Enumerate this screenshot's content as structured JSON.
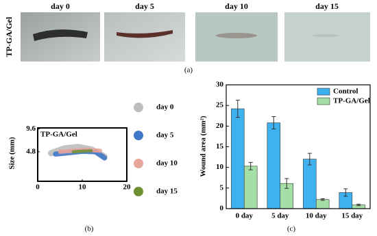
{
  "photos": {
    "row_label": "TP-GA/Gel",
    "labels": [
      "day 0",
      "day 5",
      "day 10",
      "day 15"
    ],
    "panel": "(a)"
  },
  "chart_data": [
    {
      "type": "trace",
      "panel": "(b)",
      "title": "TP-GA/Gel",
      "ylabel": "Size (mm)",
      "xlim": [
        0,
        20
      ],
      "xticks": [
        0,
        10,
        20
      ],
      "ylim": [
        -1.4,
        9.8
      ],
      "yticks": [
        4.8,
        9.6
      ],
      "series": [
        {
          "name": "day 0",
          "color": "#bdbdbd",
          "x": [
            3,
            6,
            9,
            12,
            15
          ],
          "values": [
            4.5,
            5.5,
            5.8,
            5.3,
            3.8
          ]
        },
        {
          "name": "day 5",
          "color": "#3f78c8",
          "x": [
            4,
            7,
            10,
            13,
            15
          ],
          "values": [
            4.3,
            4.6,
            4.9,
            4.8,
            3.5
          ]
        },
        {
          "name": "day 10",
          "color": "#e8a59a",
          "x": [
            5,
            8,
            11,
            14
          ],
          "values": [
            4.8,
            5.0,
            5.2,
            5.0
          ]
        },
        {
          "name": "day 15",
          "color": "#6f8f35",
          "x": [
            8,
            10,
            12
          ],
          "values": [
            4.8,
            4.9,
            5.0
          ]
        }
      ]
    },
    {
      "type": "bar",
      "panel": "(c)",
      "ylabel": "Wound area (mm²)",
      "categories": [
        "0 day",
        "5 day",
        "10 day",
        "15 day"
      ],
      "ylim": [
        0,
        30
      ],
      "yticks": [
        0,
        5,
        10,
        15,
        20,
        25,
        30
      ],
      "series": [
        {
          "name": "Control",
          "color": "#3fb1ee",
          "values": [
            24.2,
            20.8,
            12,
            3.9
          ],
          "errors": [
            2.1,
            1.5,
            1.4,
            0.9
          ]
        },
        {
          "name": "TP-GA/Gel",
          "color": "#a6dfa6",
          "values": [
            10.3,
            6.1,
            2.2,
            0.9
          ],
          "errors": [
            0.9,
            1.2,
            0.2,
            0.2
          ]
        }
      ]
    }
  ]
}
